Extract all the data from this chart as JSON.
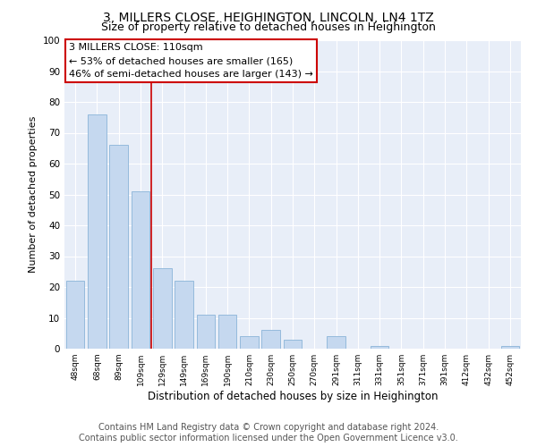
{
  "title": "3, MILLERS CLOSE, HEIGHINGTON, LINCOLN, LN4 1TZ",
  "subtitle": "Size of property relative to detached houses in Heighington",
  "xlabel": "Distribution of detached houses by size in Heighington",
  "ylabel": "Number of detached properties",
  "footer_line1": "Contains HM Land Registry data © Crown copyright and database right 2024.",
  "footer_line2": "Contains public sector information licensed under the Open Government Licence v3.0.",
  "categories": [
    "48sqm",
    "68sqm",
    "89sqm",
    "109sqm",
    "129sqm",
    "149sqm",
    "169sqm",
    "190sqm",
    "210sqm",
    "230sqm",
    "250sqm",
    "270sqm",
    "291sqm",
    "311sqm",
    "331sqm",
    "351sqm",
    "371sqm",
    "391sqm",
    "412sqm",
    "432sqm",
    "452sqm"
  ],
  "values": [
    22,
    76,
    66,
    51,
    26,
    22,
    11,
    11,
    4,
    6,
    3,
    0,
    4,
    0,
    1,
    0,
    0,
    0,
    0,
    0,
    1
  ],
  "bar_color": "#c5d8ef",
  "bar_edge_color": "#8ab4d8",
  "vline_x_index": 3,
  "vline_color": "#cc0000",
  "annotation_text": "3 MILLERS CLOSE: 110sqm\n← 53% of detached houses are smaller (165)\n46% of semi-detached houses are larger (143) →",
  "annotation_box_color": "#ffffff",
  "annotation_box_edge_color": "#cc0000",
  "ylim": [
    0,
    100
  ],
  "plot_background_color": "#e8eef8",
  "title_fontsize": 10,
  "subtitle_fontsize": 9,
  "annotation_fontsize": 8,
  "ylabel_fontsize": 8,
  "xlabel_fontsize": 8.5,
  "footer_fontsize": 7
}
